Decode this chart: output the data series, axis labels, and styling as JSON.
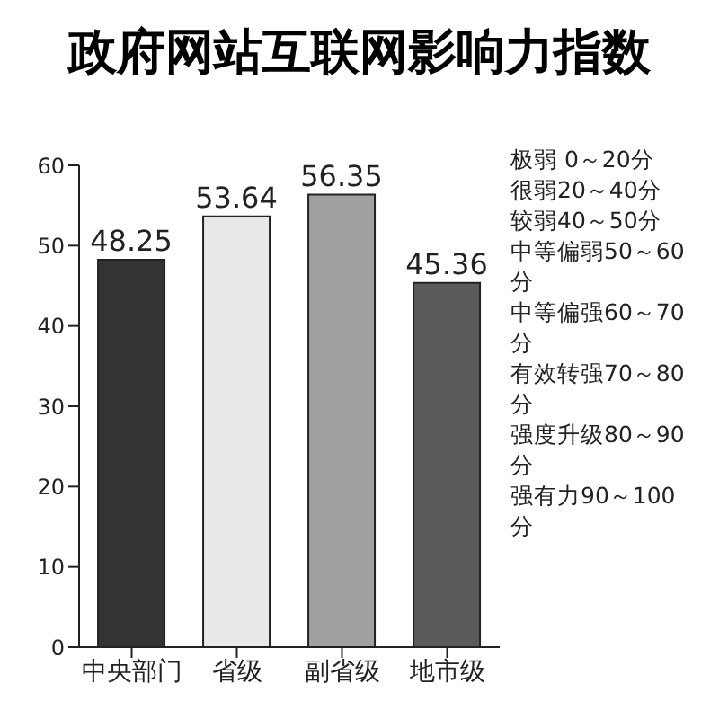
{
  "chart_data": {
    "type": "bar",
    "title": "政府网站互联网影响力指数",
    "categories": [
      "中央部门",
      "省级",
      "副省级",
      "地市级"
    ],
    "values": [
      48.25,
      53.64,
      56.35,
      45.36
    ],
    "colors": [
      "#333333",
      "#e8e8e8",
      "#a0a0a0",
      "#5a5a5a"
    ],
    "ylim": [
      0,
      60
    ],
    "yticks": [
      0,
      10,
      20,
      30,
      40,
      50,
      60
    ],
    "grid": false,
    "data_labels": true,
    "annotations": [
      "极弱 0～20分",
      "很弱20～40分",
      "较弱40～50分",
      "中等偏弱50～60分",
      "中等偏强60～70分",
      "有效转强70～80分",
      "强度升级80～90分",
      "强有力90～100分"
    ]
  }
}
